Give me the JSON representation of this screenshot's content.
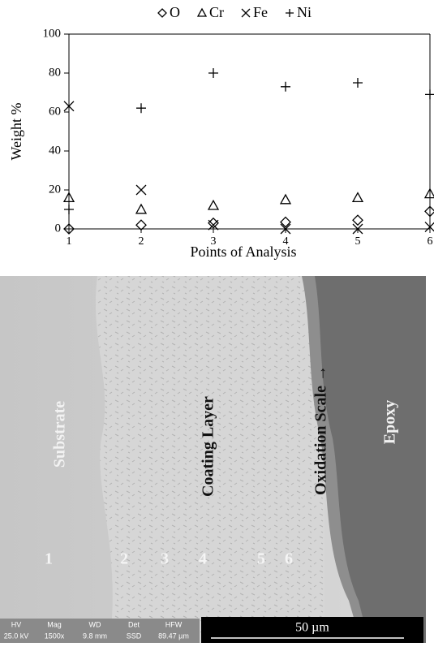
{
  "chart_data": {
    "type": "scatter",
    "x_label": "Points of Analysis",
    "y_label": "Weight %",
    "x": [
      1,
      2,
      3,
      4,
      5,
      6
    ],
    "series": [
      {
        "name": "O",
        "marker": "diamond",
        "color": "#000000",
        "values": [
          0,
          2,
          3,
          3.5,
          4.5,
          9
        ]
      },
      {
        "name": "Cr",
        "marker": "triangle",
        "color": "#000000",
        "values": [
          16,
          10,
          12,
          15,
          16,
          18
        ]
      },
      {
        "name": "Fe",
        "marker": "cross",
        "color": "#000000",
        "values": [
          63,
          20,
          2,
          0,
          0,
          1
        ]
      },
      {
        "name": "Ni",
        "marker": "plus",
        "color": "#000000",
        "values": [
          10,
          62,
          80,
          73,
          75,
          69
        ]
      }
    ],
    "xlim": [
      1,
      6
    ],
    "xticks": [
      1,
      2,
      3,
      4,
      5,
      6
    ],
    "ylim": [
      0,
      100
    ],
    "yticks": [
      0,
      20,
      40,
      60,
      80,
      100
    ],
    "legend": "top"
  },
  "micrograph": {
    "labels": [
      "Substrate",
      "Coating Layer",
      "Oxidation Scale →",
      "Epoxy"
    ],
    "points": [
      "1",
      "2",
      "3",
      "4",
      "5",
      "6"
    ],
    "info_bar": {
      "headers": [
        "HV",
        "Mag",
        "WD",
        "Det",
        "HFW"
      ],
      "values": [
        "25.0 kV",
        "1500x",
        "9.8 mm",
        "SSD",
        "89.47 µm"
      ]
    },
    "scale_bar": "50 µm"
  }
}
